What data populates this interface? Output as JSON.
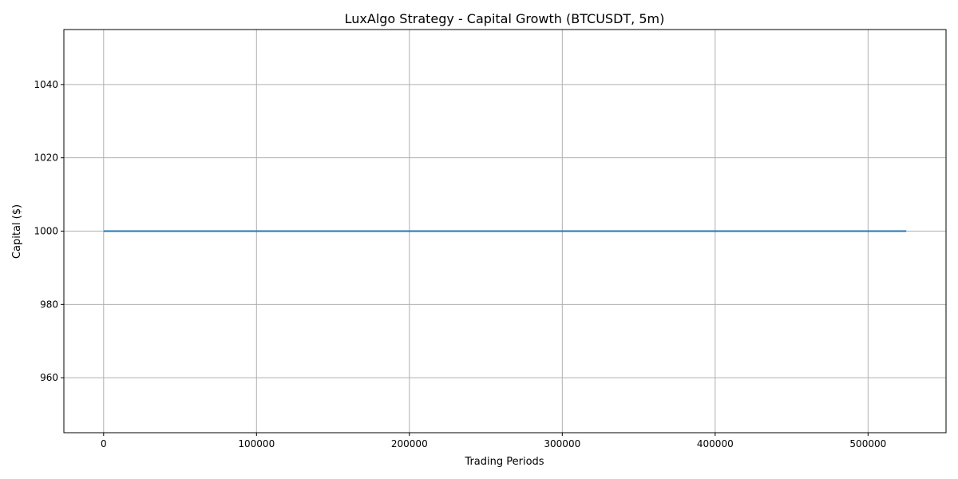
{
  "chart_data": {
    "type": "line",
    "title": "LuxAlgo Strategy - Capital Growth (BTCUSDT, 5m)",
    "xlabel": "Trading Periods",
    "ylabel": "Capital ($)",
    "xlim": [
      -26000,
      551000
    ],
    "ylim": [
      945,
      1055
    ],
    "xticks": [
      0,
      100000,
      200000,
      300000,
      400000,
      500000
    ],
    "yticks": [
      960,
      980,
      1000,
      1020,
      1040
    ],
    "grid": true,
    "series": [
      {
        "color": "#1f77b4",
        "x": [
          0,
          525000
        ],
        "y": [
          1000,
          1000
        ]
      }
    ]
  }
}
